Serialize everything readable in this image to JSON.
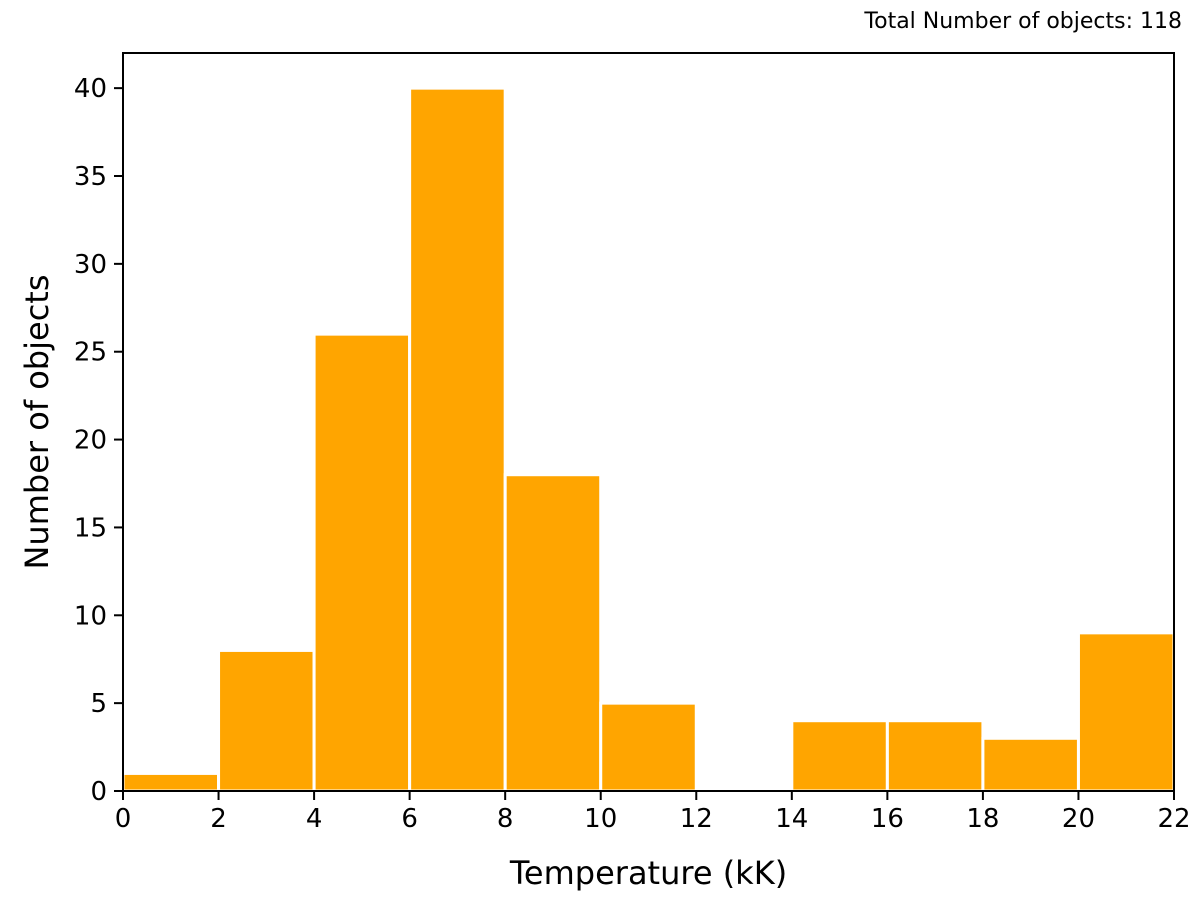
{
  "chart_data": {
    "type": "bar",
    "annotation": "Total Number of objects: 118",
    "xlabel": "Temperature (kK)",
    "ylabel": "Number of objects",
    "xlim": [
      0,
      22
    ],
    "ylim": [
      0,
      42
    ],
    "xticks": [
      0,
      2,
      4,
      6,
      8,
      10,
      12,
      14,
      16,
      18,
      20,
      22
    ],
    "yticks": [
      0,
      5,
      10,
      15,
      20,
      25,
      30,
      35,
      40
    ],
    "grid": false,
    "bin_width": 2,
    "bins": [
      {
        "start": 0,
        "end": 2,
        "value": 1
      },
      {
        "start": 2,
        "end": 4,
        "value": 8
      },
      {
        "start": 4,
        "end": 6,
        "value": 26
      },
      {
        "start": 6,
        "end": 8,
        "value": 40
      },
      {
        "start": 8,
        "end": 10,
        "value": 18
      },
      {
        "start": 10,
        "end": 12,
        "value": 5
      },
      {
        "start": 12,
        "end": 14,
        "value": 0
      },
      {
        "start": 14,
        "end": 16,
        "value": 4
      },
      {
        "start": 16,
        "end": 18,
        "value": 4
      },
      {
        "start": 18,
        "end": 20,
        "value": 3
      },
      {
        "start": 20,
        "end": 22,
        "value": 9
      }
    ],
    "colors": {
      "bar": "#FFA500",
      "bar_edge": "#ffffff",
      "axis": "#000000"
    }
  }
}
